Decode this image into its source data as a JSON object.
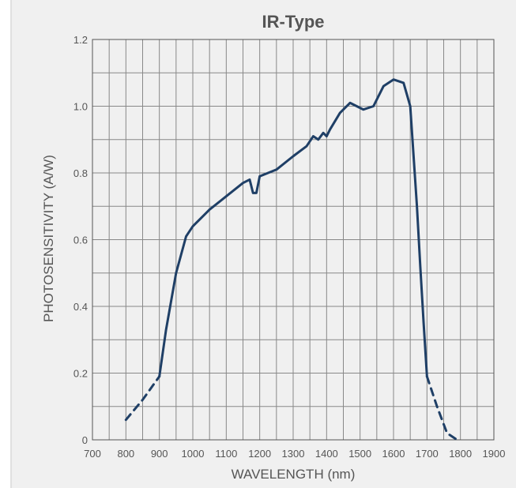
{
  "chart_data": {
    "type": "line",
    "title": "IR-Type",
    "xlabel": "WAVELENGTH (nm)",
    "ylabel": "PHOTOSENSITIVITY (A/W)",
    "xlim": [
      700,
      1900
    ],
    "ylim": [
      0,
      1.2
    ],
    "grid": true,
    "x_ticks": [
      700,
      800,
      900,
      1000,
      1100,
      1200,
      1300,
      1400,
      1500,
      1600,
      1700,
      1800,
      1900
    ],
    "y_ticks": [
      0,
      0.2,
      0.4,
      0.6,
      0.8,
      1.0,
      1.2
    ],
    "y_tick_labels": [
      "0",
      "0.2",
      "0.4",
      "0.6",
      "0.8",
      "1.0",
      "1.2"
    ],
    "series_color": "#1f3f66",
    "series": [
      {
        "style": "dashed",
        "x": [
          800,
          850,
          900
        ],
        "y": [
          0.06,
          0.12,
          0.19
        ]
      },
      {
        "style": "solid",
        "x": [
          900,
          920,
          950,
          980,
          1000,
          1050,
          1100,
          1150,
          1170,
          1180,
          1190,
          1200,
          1250,
          1300,
          1340,
          1360,
          1375,
          1390,
          1400,
          1410,
          1440,
          1470,
          1490,
          1510,
          1540,
          1570,
          1600,
          1630,
          1650,
          1660,
          1670,
          1680,
          1690,
          1700
        ],
        "y": [
          0.19,
          0.33,
          0.5,
          0.61,
          0.64,
          0.69,
          0.73,
          0.77,
          0.78,
          0.74,
          0.74,
          0.79,
          0.81,
          0.85,
          0.88,
          0.91,
          0.9,
          0.92,
          0.91,
          0.93,
          0.98,
          1.01,
          1.0,
          0.99,
          1.0,
          1.06,
          1.08,
          1.07,
          1.0,
          0.85,
          0.7,
          0.52,
          0.35,
          0.19
        ]
      },
      {
        "style": "dashed",
        "x": [
          1700,
          1730,
          1760,
          1790
        ],
        "y": [
          0.19,
          0.1,
          0.02,
          0.0
        ]
      }
    ]
  }
}
